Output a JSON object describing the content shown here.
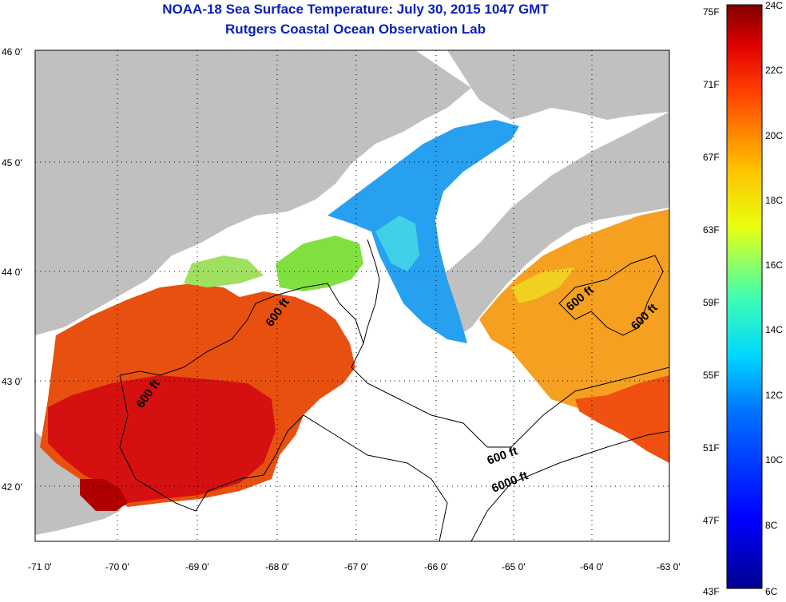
{
  "header": {
    "title": "NOAA-18 Sea Surface Temperature:  July 30, 2015 1047 GMT",
    "subtitle": "Rutgers Coastal Ocean Observation Lab"
  },
  "map": {
    "lat_labels": [
      "46 0'",
      "45 0'",
      "44 0'",
      "43 0'",
      "42 0'"
    ],
    "lon_labels": [
      "-71 0'",
      "-70 0'",
      "-69 0'",
      "-68 0'",
      "-67 0'",
      "-66 0'",
      "-65 0'",
      "-64 0'",
      "-63 0'"
    ],
    "contour_labels": [
      "600 ft",
      "600 ft",
      "600 ft",
      "600 ft",
      "600 ft",
      "6000 ft"
    ],
    "land_color": "#c0c0c0",
    "nodata_color": "#ffffff"
  },
  "colorbar": {
    "fahrenheit": [
      "75F",
      "71F",
      "67F",
      "63F",
      "59F",
      "55F",
      "51F",
      "47F",
      "43F"
    ],
    "celsius": [
      "24C",
      "22C",
      "20C",
      "18C",
      "16C",
      "14C",
      "12C",
      "10C",
      "8C",
      "6C"
    ],
    "min_c": 6,
    "max_c": 24
  }
}
